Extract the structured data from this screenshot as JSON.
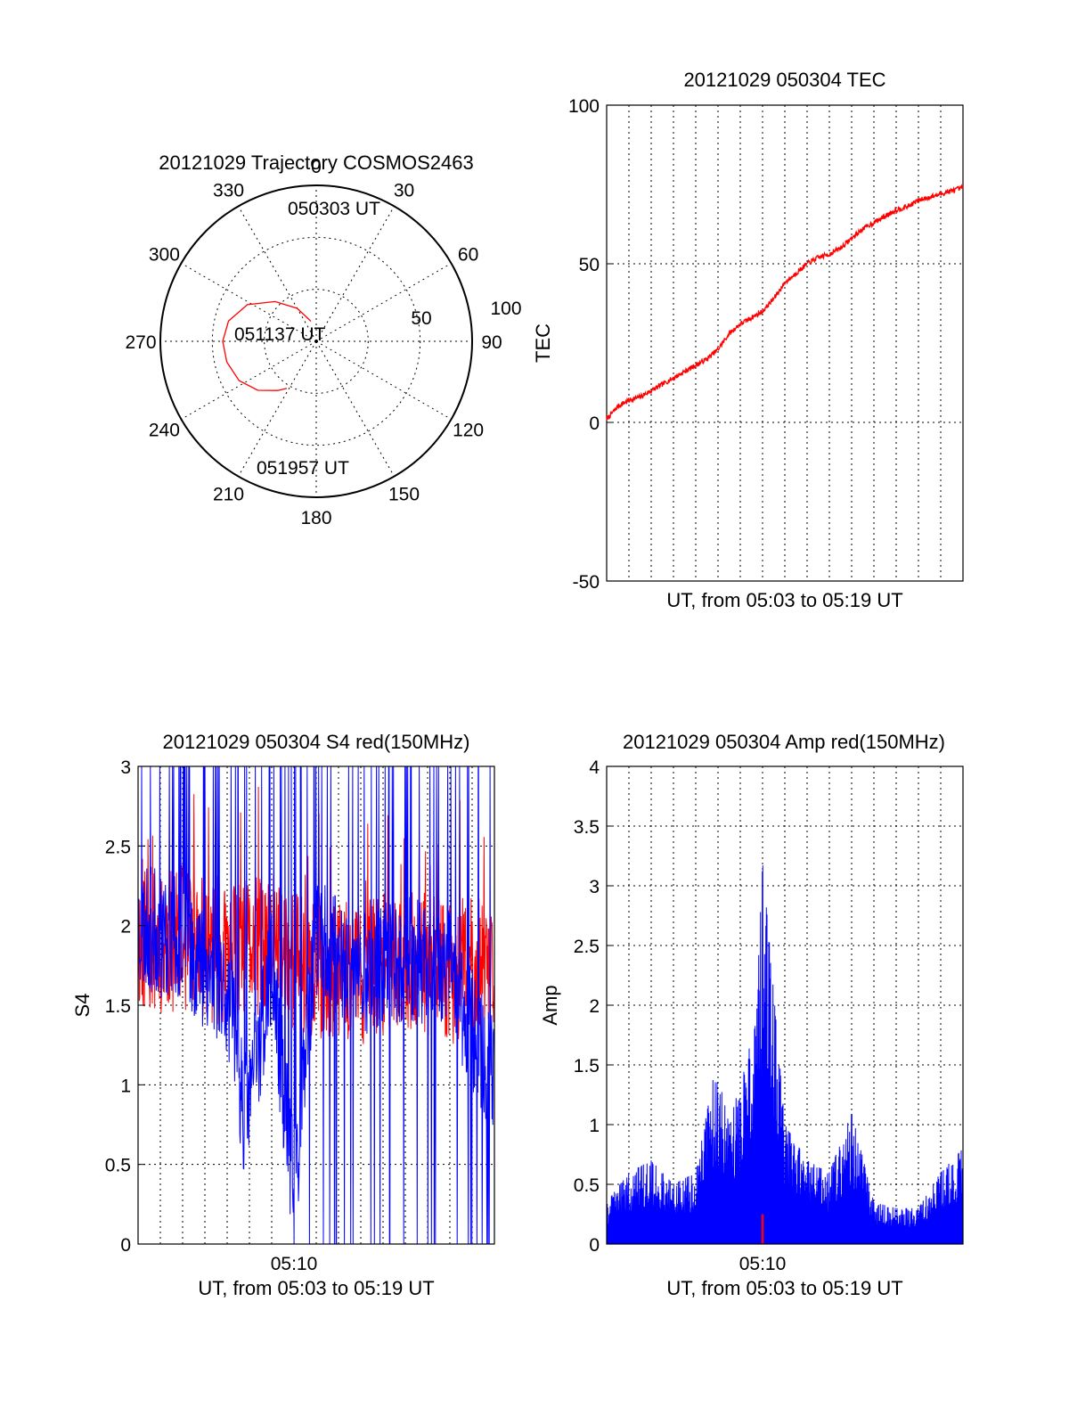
{
  "chart_data": [
    {
      "type": "polar",
      "title": "20121029 Trajectory COSMOS2463",
      "azimuth_labels": [
        "0",
        "30",
        "60",
        "90",
        "120",
        "150",
        "180",
        "210",
        "240",
        "270",
        "300",
        "330"
      ],
      "radial_labels": [
        "50",
        "100"
      ],
      "rlim": [
        0,
        90
      ],
      "grid": true,
      "annotations": [
        "050303 UT",
        "051137 UT",
        "051957 UT"
      ],
      "series": [
        {
          "color": "#ff0000",
          "points": [
            {
              "az": 345,
              "r": 12
            },
            {
              "az": 330,
              "r": 22
            },
            {
              "az": 314,
              "r": 33
            },
            {
              "az": 298,
              "r": 45
            },
            {
              "az": 283,
              "r": 52
            },
            {
              "az": 270,
              "r": 54
            },
            {
              "az": 257,
              "r": 53
            },
            {
              "az": 243,
              "r": 50
            },
            {
              "az": 230,
              "r": 44
            },
            {
              "az": 218,
              "r": 36
            },
            {
              "az": 212,
              "r": 32
            }
          ]
        }
      ]
    },
    {
      "type": "line",
      "title": "20121029 050304 TEC",
      "xlabel": "UT, from 05:03 to 05:19 UT",
      "ylabel": "TEC",
      "xlim": [
        0,
        16
      ],
      "ylim": [
        -50,
        100
      ],
      "yticks": [
        "-50",
        "0",
        "50",
        "100"
      ],
      "grid": true,
      "series": [
        {
          "color": "#ff0000",
          "x": [
            0,
            0.5,
            1,
            1.5,
            2,
            2.5,
            3,
            3.5,
            4,
            4.5,
            5,
            5.5,
            6,
            6.5,
            7,
            7.5,
            8,
            8.5,
            9,
            9.5,
            10,
            10.5,
            11,
            11.5,
            12,
            12.5,
            13,
            13.5,
            14,
            14.5,
            15,
            15.5,
            16
          ],
          "y": [
            1,
            5,
            7,
            8,
            10,
            12,
            14,
            16,
            18,
            20,
            23,
            28,
            31,
            33,
            35,
            39,
            44,
            47,
            50,
            52,
            53,
            55,
            58,
            61,
            63,
            65,
            67,
            68,
            70,
            71,
            72,
            73,
            74
          ]
        }
      ]
    },
    {
      "type": "line",
      "title": "20121029 050304 S4 red(150MHz)",
      "xlabel": "UT, from 05:03 to 05:19 UT",
      "ylabel": "S4",
      "xlim": [
        0,
        16
      ],
      "ylim": [
        0,
        3
      ],
      "xticks": [
        "05:10"
      ],
      "yticks": [
        "0",
        "0.5",
        "1",
        "1.5",
        "2",
        "2.5",
        "3"
      ],
      "grid": true,
      "series": [
        {
          "color": "#0000ff",
          "x": [
            0,
            2,
            4,
            4.8,
            6,
            7,
            8,
            9,
            10,
            12,
            14,
            16
          ],
          "y": [
            2.0,
            1.9,
            1.6,
            0.8,
            1.7,
            0.35,
            1.9,
            1.8,
            1.7,
            1.8,
            1.7,
            1.0
          ]
        },
        {
          "color": "#ff0000",
          "x": [
            0,
            2,
            4,
            6,
            8,
            10,
            12,
            14,
            16
          ],
          "y": [
            1.9,
            1.9,
            1.8,
            1.9,
            1.7,
            1.7,
            1.8,
            1.7,
            1.8
          ]
        }
      ]
    },
    {
      "type": "bar",
      "title": "20121029 050304 Amp red(150MHz)",
      "xlabel": "UT, from 05:03 to 05:19 UT",
      "ylabel": "Amp",
      "xlim": [
        0,
        16
      ],
      "ylim": [
        0,
        4
      ],
      "xticks": [
        "05:10"
      ],
      "yticks": [
        "0",
        "0.5",
        "1",
        "1.5",
        "2",
        "2.5",
        "3",
        "3.5",
        "4"
      ],
      "grid": true,
      "series": [
        {
          "color": "#0000ff",
          "x": [
            0,
            1,
            2,
            3,
            4,
            4.9,
            5.5,
            6.7,
            7,
            8,
            9,
            10,
            11,
            12,
            13,
            14,
            15,
            16
          ],
          "y": [
            0.35,
            0.6,
            0.7,
            0.5,
            0.6,
            1.5,
            1.0,
            1.85,
            3.2,
            1.0,
            0.7,
            0.6,
            1.1,
            0.35,
            0.3,
            0.3,
            0.6,
            0.8
          ]
        },
        {
          "color": "#ff0000",
          "x": [
            6.95,
            7.05
          ],
          "y": [
            0.25,
            0.25
          ]
        }
      ]
    }
  ]
}
